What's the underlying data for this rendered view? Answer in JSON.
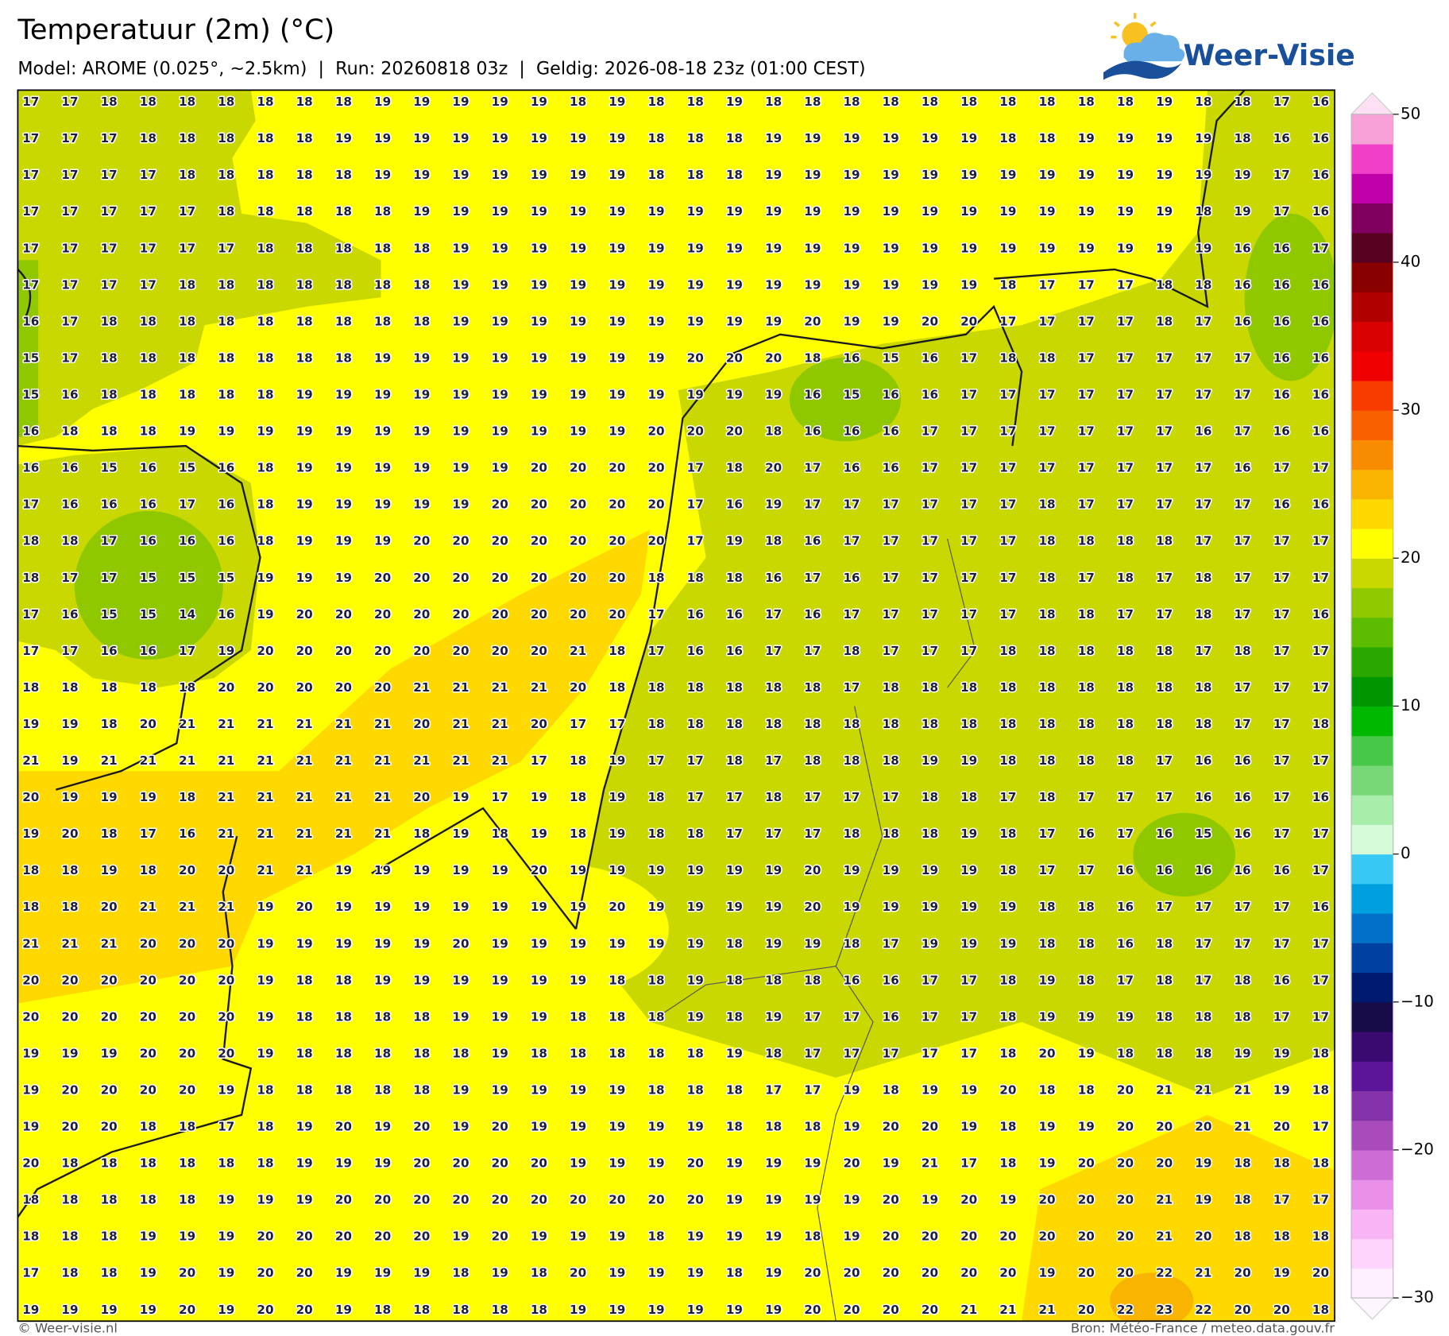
{
  "header": {
    "title": "Temperatuur (2m) (°C)",
    "subtitle": "Model: AROME (0.025°, ~2.5km)  |  Run: 20260818 03z  |  Geldig: 2026-08-18 23z (01:00 CEST)",
    "logo": "Weer-Visie"
  },
  "map": {
    "rows": [
      [
        17,
        17,
        18,
        18,
        18,
        18,
        18,
        18,
        18,
        19,
        19,
        19,
        19,
        19,
        18,
        19,
        18,
        18,
        19,
        18,
        18,
        18,
        18,
        18,
        18,
        18,
        18,
        18,
        18,
        19,
        18,
        18,
        17,
        16
      ],
      [
        17,
        17,
        17,
        18,
        18,
        18,
        18,
        18,
        19,
        19,
        19,
        19,
        19,
        19,
        19,
        19,
        18,
        18,
        18,
        19,
        19,
        19,
        19,
        19,
        19,
        18,
        18,
        19,
        19,
        19,
        19,
        18,
        16,
        16
      ],
      [
        17,
        17,
        17,
        17,
        18,
        18,
        18,
        18,
        18,
        19,
        19,
        19,
        19,
        19,
        19,
        19,
        18,
        18,
        18,
        19,
        19,
        19,
        19,
        19,
        19,
        19,
        19,
        19,
        19,
        19,
        19,
        19,
        17,
        16
      ],
      [
        17,
        17,
        17,
        17,
        17,
        18,
        18,
        18,
        18,
        18,
        19,
        19,
        19,
        19,
        19,
        19,
        19,
        19,
        19,
        19,
        19,
        19,
        19,
        19,
        19,
        19,
        19,
        19,
        19,
        19,
        18,
        19,
        17,
        16
      ],
      [
        17,
        17,
        17,
        17,
        17,
        17,
        18,
        18,
        18,
        18,
        18,
        19,
        19,
        19,
        19,
        19,
        19,
        19,
        19,
        19,
        19,
        19,
        19,
        19,
        19,
        19,
        19,
        19,
        19,
        19,
        19,
        16,
        16,
        17
      ],
      [
        17,
        17,
        17,
        17,
        18,
        18,
        18,
        18,
        18,
        18,
        18,
        19,
        19,
        19,
        19,
        19,
        19,
        19,
        19,
        19,
        19,
        19,
        19,
        19,
        19,
        18,
        17,
        17,
        17,
        18,
        18,
        16,
        16,
        16
      ],
      [
        16,
        17,
        18,
        18,
        18,
        18,
        18,
        18,
        18,
        18,
        18,
        19,
        19,
        19,
        19,
        19,
        19,
        19,
        19,
        19,
        20,
        19,
        19,
        20,
        20,
        17,
        17,
        17,
        17,
        18,
        17,
        16,
        16,
        16
      ],
      [
        15,
        17,
        18,
        18,
        18,
        18,
        18,
        18,
        18,
        19,
        19,
        19,
        19,
        19,
        19,
        19,
        19,
        20,
        20,
        20,
        18,
        16,
        15,
        16,
        17,
        18,
        18,
        17,
        17,
        17,
        17,
        17,
        16,
        16
      ],
      [
        15,
        16,
        18,
        18,
        18,
        18,
        18,
        19,
        19,
        19,
        19,
        19,
        19,
        19,
        19,
        19,
        19,
        19,
        19,
        19,
        16,
        15,
        16,
        16,
        17,
        17,
        17,
        17,
        17,
        17,
        17,
        17,
        16,
        16
      ],
      [
        16,
        18,
        18,
        18,
        19,
        19,
        19,
        19,
        19,
        19,
        19,
        19,
        19,
        19,
        19,
        19,
        20,
        20,
        20,
        18,
        16,
        16,
        16,
        17,
        17,
        17,
        17,
        17,
        17,
        17,
        16,
        17,
        16,
        16
      ],
      [
        16,
        16,
        15,
        16,
        15,
        16,
        18,
        19,
        19,
        19,
        19,
        19,
        19,
        20,
        20,
        20,
        20,
        17,
        18,
        20,
        17,
        16,
        16,
        17,
        17,
        17,
        17,
        17,
        17,
        17,
        17,
        16,
        17,
        17
      ],
      [
        17,
        16,
        16,
        16,
        17,
        16,
        18,
        19,
        19,
        19,
        19,
        19,
        20,
        20,
        20,
        20,
        20,
        17,
        16,
        19,
        17,
        17,
        17,
        17,
        17,
        17,
        18,
        17,
        17,
        17,
        17,
        17,
        16,
        16
      ],
      [
        18,
        18,
        17,
        16,
        16,
        16,
        18,
        19,
        19,
        19,
        20,
        20,
        20,
        20,
        20,
        20,
        20,
        17,
        19,
        18,
        16,
        17,
        17,
        17,
        17,
        17,
        18,
        18,
        18,
        18,
        17,
        17,
        17,
        17
      ],
      [
        18,
        17,
        17,
        15,
        15,
        15,
        19,
        19,
        19,
        20,
        20,
        20,
        20,
        20,
        20,
        20,
        18,
        18,
        18,
        16,
        17,
        16,
        17,
        17,
        17,
        17,
        18,
        17,
        18,
        17,
        18,
        17,
        17,
        17
      ],
      [
        17,
        16,
        15,
        15,
        14,
        16,
        19,
        20,
        20,
        20,
        20,
        20,
        20,
        20,
        20,
        20,
        17,
        16,
        16,
        17,
        16,
        17,
        17,
        17,
        17,
        17,
        18,
        18,
        17,
        17,
        18,
        17,
        17,
        16
      ],
      [
        17,
        17,
        16,
        16,
        17,
        19,
        20,
        20,
        20,
        20,
        20,
        20,
        20,
        20,
        21,
        18,
        17,
        16,
        16,
        17,
        17,
        18,
        17,
        17,
        17,
        18,
        18,
        18,
        18,
        18,
        17,
        18,
        17,
        17
      ],
      [
        18,
        18,
        18,
        18,
        18,
        20,
        20,
        20,
        20,
        20,
        21,
        21,
        21,
        21,
        20,
        18,
        18,
        18,
        18,
        18,
        18,
        17,
        18,
        18,
        18,
        18,
        18,
        18,
        18,
        18,
        18,
        17,
        17,
        17
      ],
      [
        19,
        19,
        18,
        20,
        21,
        21,
        21,
        21,
        21,
        21,
        20,
        21,
        21,
        20,
        17,
        17,
        18,
        18,
        18,
        18,
        18,
        18,
        18,
        18,
        18,
        18,
        18,
        18,
        18,
        18,
        18,
        17,
        17,
        18
      ],
      [
        21,
        19,
        21,
        21,
        21,
        21,
        21,
        21,
        21,
        21,
        21,
        21,
        21,
        17,
        18,
        19,
        17,
        17,
        18,
        17,
        18,
        18,
        18,
        19,
        19,
        18,
        18,
        18,
        18,
        17,
        16,
        16,
        17,
        17
      ],
      [
        20,
        19,
        19,
        19,
        18,
        21,
        21,
        21,
        21,
        21,
        20,
        19,
        17,
        19,
        18,
        19,
        18,
        17,
        17,
        18,
        17,
        17,
        17,
        18,
        18,
        17,
        18,
        17,
        17,
        17,
        16,
        16,
        17,
        16
      ],
      [
        19,
        20,
        18,
        17,
        16,
        21,
        21,
        21,
        21,
        21,
        18,
        19,
        18,
        19,
        18,
        19,
        18,
        18,
        17,
        17,
        17,
        18,
        18,
        18,
        19,
        18,
        17,
        16,
        17,
        16,
        15,
        16,
        17,
        17
      ],
      [
        18,
        18,
        19,
        18,
        20,
        20,
        21,
        21,
        19,
        19,
        19,
        19,
        19,
        20,
        19,
        19,
        19,
        19,
        19,
        19,
        20,
        19,
        19,
        19,
        19,
        18,
        17,
        17,
        16,
        16,
        16,
        16,
        16,
        17
      ],
      [
        18,
        18,
        20,
        21,
        21,
        21,
        19,
        20,
        19,
        19,
        19,
        19,
        19,
        19,
        19,
        20,
        19,
        19,
        19,
        19,
        20,
        19,
        19,
        19,
        19,
        19,
        18,
        18,
        16,
        17,
        17,
        17,
        17,
        16
      ],
      [
        21,
        21,
        21,
        20,
        20,
        20,
        19,
        19,
        19,
        19,
        19,
        20,
        19,
        19,
        19,
        19,
        19,
        19,
        18,
        19,
        19,
        18,
        17,
        19,
        19,
        19,
        18,
        18,
        16,
        18,
        17,
        17,
        17,
        17
      ],
      [
        20,
        20,
        20,
        20,
        20,
        20,
        19,
        18,
        18,
        19,
        19,
        19,
        19,
        19,
        19,
        18,
        18,
        19,
        18,
        18,
        18,
        16,
        16,
        17,
        17,
        18,
        19,
        18,
        17,
        18,
        17,
        18,
        16,
        17
      ],
      [
        20,
        20,
        20,
        20,
        20,
        20,
        19,
        18,
        18,
        18,
        18,
        19,
        19,
        19,
        18,
        18,
        18,
        19,
        18,
        19,
        17,
        17,
        16,
        17,
        17,
        18,
        19,
        19,
        19,
        18,
        18,
        18,
        17,
        17
      ],
      [
        19,
        19,
        19,
        20,
        20,
        20,
        19,
        18,
        18,
        18,
        18,
        18,
        19,
        18,
        18,
        18,
        18,
        18,
        19,
        18,
        17,
        17,
        17,
        17,
        17,
        18,
        20,
        19,
        18,
        18,
        18,
        19,
        19,
        18
      ],
      [
        19,
        20,
        20,
        20,
        20,
        19,
        18,
        18,
        18,
        18,
        18,
        19,
        19,
        19,
        19,
        19,
        18,
        18,
        18,
        17,
        17,
        19,
        18,
        19,
        19,
        20,
        18,
        18,
        20,
        21,
        21,
        21,
        19,
        18
      ],
      [
        19,
        20,
        20,
        18,
        18,
        17,
        18,
        19,
        20,
        19,
        20,
        19,
        20,
        19,
        19,
        19,
        19,
        19,
        18,
        18,
        18,
        19,
        20,
        20,
        19,
        18,
        19,
        19,
        20,
        20,
        20,
        21,
        20,
        17
      ],
      [
        20,
        18,
        18,
        18,
        18,
        18,
        18,
        19,
        19,
        19,
        20,
        20,
        20,
        20,
        19,
        19,
        19,
        20,
        19,
        19,
        19,
        20,
        19,
        21,
        17,
        18,
        19,
        20,
        20,
        20,
        19,
        18,
        18,
        18
      ],
      [
        18,
        18,
        18,
        18,
        18,
        19,
        19,
        19,
        20,
        20,
        20,
        20,
        20,
        20,
        20,
        20,
        20,
        20,
        19,
        19,
        19,
        19,
        20,
        19,
        20,
        19,
        20,
        20,
        20,
        21,
        19,
        18,
        17,
        17
      ],
      [
        18,
        18,
        18,
        19,
        19,
        19,
        20,
        20,
        20,
        20,
        20,
        19,
        20,
        19,
        19,
        19,
        18,
        19,
        19,
        19,
        18,
        19,
        20,
        20,
        20,
        20,
        20,
        20,
        20,
        21,
        20,
        18,
        18,
        18
      ],
      [
        17,
        18,
        18,
        19,
        20,
        19,
        20,
        20,
        19,
        19,
        19,
        18,
        19,
        18,
        20,
        19,
        19,
        19,
        18,
        19,
        20,
        20,
        20,
        20,
        20,
        20,
        19,
        20,
        20,
        22,
        21,
        20,
        19,
        20
      ],
      [
        19,
        19,
        19,
        19,
        20,
        19,
        20,
        20,
        19,
        18,
        18,
        18,
        18,
        18,
        19,
        19,
        19,
        19,
        19,
        19,
        20,
        20,
        20,
        20,
        21,
        21,
        21,
        20,
        22,
        23,
        22,
        20,
        20,
        18
      ]
    ]
  },
  "colorbar": {
    "lim": [
      -30,
      50
    ],
    "ticks": [
      50,
      40,
      30,
      20,
      10,
      0,
      {
        "value": -10,
        "label": "−10"
      },
      {
        "value": -20,
        "label": "−20"
      },
      {
        "value": -30,
        "label": "−30"
      }
    ],
    "colors": [
      "#fef0fe",
      "#fcd4fc",
      "#f8b4f4",
      "#e890e8",
      "#cc6cd4",
      "#a84cbc",
      "#8434a8",
      "#5c1498",
      "#3a0a70",
      "#180c48",
      "#001a70",
      "#0040a0",
      "#0070c8",
      "#00a0e0",
      "#38c8f4",
      "#d4fad8",
      "#a8eeaa",
      "#78d878",
      "#48c848",
      "#00b800",
      "#009600",
      "#2aa800",
      "#5cbc00",
      "#90c800",
      "#c8d800",
      "#ffff00",
      "#ffd800",
      "#f8b400",
      "#f88c00",
      "#f86000",
      "#f83c00",
      "#f00000",
      "#d80000",
      "#b00000",
      "#880000",
      "#580020",
      "#800060",
      "#c000a8",
      "#f040c8",
      "#f8a0d8"
    ]
  },
  "footer": {
    "credit": "© Weer-visie.nl",
    "source": "Bron: Météo-France / meteo.data.gouv.fr"
  }
}
